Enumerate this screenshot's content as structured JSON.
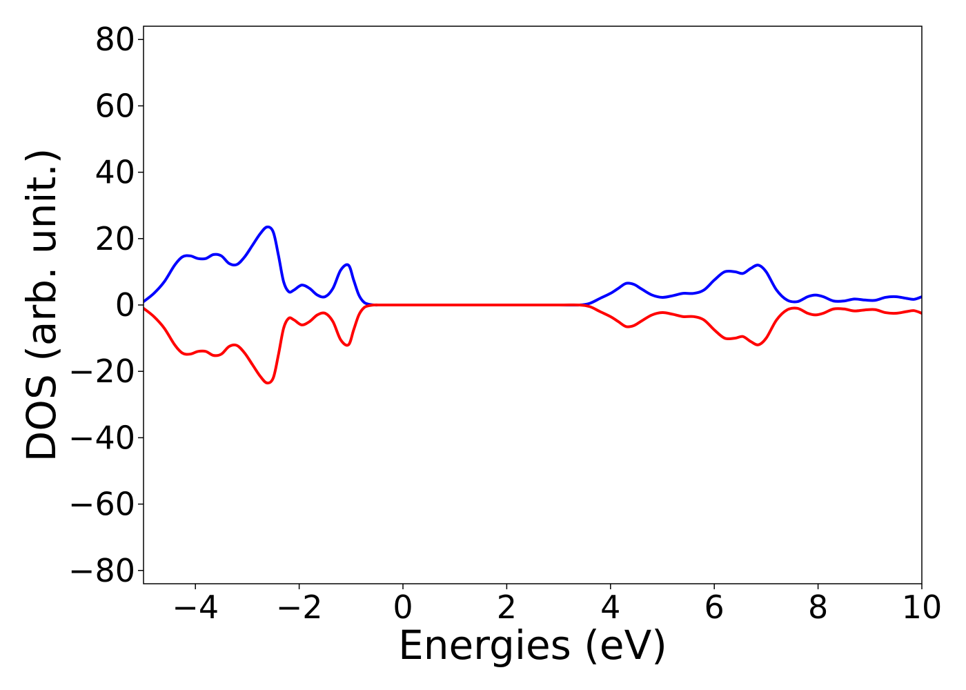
{
  "chart_data": {
    "type": "line",
    "title": "",
    "xlabel": "Energies (eV)",
    "ylabel": "DOS (arb. unit.)",
    "xlim": [
      -5,
      10
    ],
    "ylim": [
      -84,
      84
    ],
    "grid": false,
    "legend": "none",
    "xticks": [
      -4,
      -2,
      0,
      2,
      4,
      6,
      8,
      10
    ],
    "yticks": [
      -80,
      -60,
      -40,
      -20,
      0,
      20,
      40,
      60,
      80
    ],
    "xtick_labels": [
      "−4",
      "−2",
      "0",
      "2",
      "4",
      "6",
      "8",
      "10"
    ],
    "ytick_labels": [
      "−80",
      "−60",
      "−40",
      "−20",
      "0",
      "20",
      "40",
      "60",
      "80"
    ],
    "series": [
      {
        "color": "#0000ff",
        "x": [
          -5.0,
          -4.8,
          -4.6,
          -4.4,
          -4.25,
          -4.1,
          -3.95,
          -3.8,
          -3.65,
          -3.5,
          -3.35,
          -3.2,
          -3.05,
          -2.9,
          -2.75,
          -2.62,
          -2.5,
          -2.4,
          -2.3,
          -2.2,
          -2.1,
          -1.95,
          -1.8,
          -1.65,
          -1.5,
          -1.35,
          -1.2,
          -1.05,
          -0.95,
          -0.85,
          -0.75,
          -0.65,
          -0.55,
          -0.4,
          0.0,
          1.0,
          2.0,
          3.0,
          3.4,
          3.6,
          3.8,
          4.0,
          4.15,
          4.3,
          4.45,
          4.6,
          4.8,
          5.0,
          5.2,
          5.4,
          5.6,
          5.8,
          6.0,
          6.2,
          6.4,
          6.55,
          6.7,
          6.85,
          7.0,
          7.2,
          7.4,
          7.6,
          7.8,
          7.95,
          8.1,
          8.3,
          8.5,
          8.7,
          8.9,
          9.1,
          9.3,
          9.5,
          9.7,
          9.85,
          10.0
        ],
        "y": [
          1,
          3.5,
          7,
          12,
          14.5,
          14.8,
          14,
          14,
          15.2,
          14.8,
          12.5,
          12.2,
          14.5,
          18,
          21.5,
          23.5,
          22,
          15,
          7,
          4,
          4.5,
          6,
          5,
          3,
          2.5,
          5,
          10.5,
          12,
          7.5,
          3,
          0.8,
          0.2,
          0,
          0,
          0,
          0,
          0,
          0,
          0,
          0.5,
          2,
          3.5,
          5,
          6.5,
          6.2,
          4.8,
          3,
          2.3,
          2.8,
          3.5,
          3.5,
          4.5,
          7.5,
          10,
          10,
          9.5,
          11,
          12,
          10,
          4.5,
          1.5,
          1,
          2.5,
          3,
          2.5,
          1.2,
          1.2,
          1.8,
          1.5,
          1.4,
          2.3,
          2.5,
          2.0,
          1.7,
          2.5
        ]
      },
      {
        "color": "#ff0000",
        "x": [
          -5.0,
          -4.8,
          -4.6,
          -4.4,
          -4.25,
          -4.1,
          -3.95,
          -3.8,
          -3.65,
          -3.5,
          -3.35,
          -3.2,
          -3.05,
          -2.9,
          -2.75,
          -2.62,
          -2.5,
          -2.4,
          -2.3,
          -2.2,
          -2.1,
          -1.95,
          -1.8,
          -1.65,
          -1.5,
          -1.35,
          -1.2,
          -1.05,
          -0.95,
          -0.85,
          -0.75,
          -0.65,
          -0.55,
          -0.4,
          0.0,
          1.0,
          2.0,
          3.0,
          3.4,
          3.6,
          3.8,
          4.0,
          4.15,
          4.3,
          4.45,
          4.6,
          4.8,
          5.0,
          5.2,
          5.4,
          5.6,
          5.8,
          6.0,
          6.2,
          6.4,
          6.55,
          6.7,
          6.85,
          7.0,
          7.2,
          7.4,
          7.6,
          7.8,
          7.95,
          8.1,
          8.3,
          8.5,
          8.7,
          8.9,
          9.1,
          9.3,
          9.5,
          9.7,
          9.85,
          10.0
        ],
        "y": [
          -1,
          -3.5,
          -7,
          -12,
          -14.5,
          -14.8,
          -14,
          -14,
          -15.2,
          -14.8,
          -12.5,
          -12.2,
          -14.5,
          -18,
          -21.5,
          -23.5,
          -22,
          -15,
          -7,
          -4,
          -4.5,
          -6,
          -5,
          -3,
          -2.5,
          -5,
          -10.5,
          -12,
          -7.5,
          -3,
          -0.8,
          -0.2,
          0,
          0,
          0,
          0,
          0,
          0,
          0,
          -0.5,
          -2,
          -3.5,
          -5,
          -6.5,
          -6.2,
          -4.8,
          -3,
          -2.3,
          -2.8,
          -3.5,
          -3.5,
          -4.5,
          -7.5,
          -10,
          -10,
          -9.5,
          -11,
          -12,
          -10,
          -4.5,
          -1.5,
          -1,
          -2.5,
          -3,
          -2.5,
          -1.2,
          -1.2,
          -1.8,
          -1.5,
          -1.4,
          -2.3,
          -2.5,
          -2.0,
          -1.7,
          -2.5
        ]
      }
    ]
  }
}
